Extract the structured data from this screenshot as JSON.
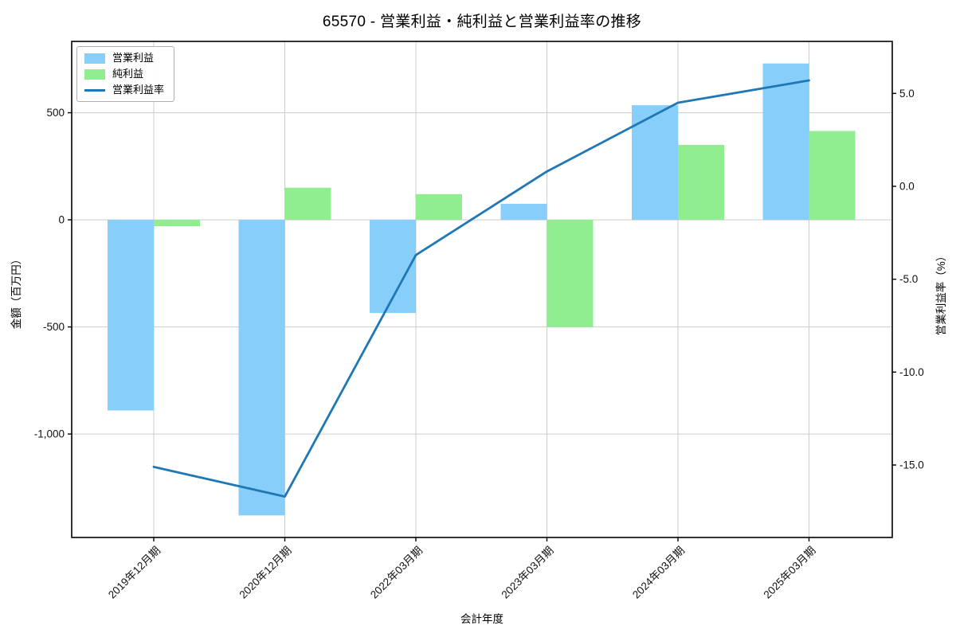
{
  "chart_data": {
    "type": "bar",
    "title": "65570 - 営業利益・純利益と営業利益率の推移",
    "xlabel": "会計年度",
    "ylabel_left": "金額（百万円）",
    "ylabel_right": "営業利益率（%）",
    "categories": [
      "2019年12月期",
      "2020年12月期",
      "2022年03月期",
      "2023年03月期",
      "2024年03月期",
      "2025年03月期"
    ],
    "series": [
      {
        "name": "営業利益",
        "type": "bar",
        "axis": "left",
        "color": "#87CEFA",
        "values": [
          -890,
          -1380,
          -435,
          75,
          535,
          730
        ]
      },
      {
        "name": "純利益",
        "type": "bar",
        "axis": "left",
        "color": "#90EE90",
        "values": [
          -30,
          150,
          120,
          -500,
          350,
          415
        ]
      },
      {
        "name": "営業利益率",
        "type": "line",
        "axis": "right",
        "color": "#1f77b4",
        "values": [
          -15.1,
          -16.7,
          -3.7,
          0.8,
          4.5,
          5.7
        ]
      }
    ],
    "yticks_left": [
      "500",
      "0",
      "-500",
      "-1,000"
    ],
    "ytick_values_left": [
      500,
      0,
      -500,
      -1000
    ],
    "yticks_right": [
      "5.0",
      "0.0",
      "-5.0",
      "-10.0",
      "-15.0"
    ],
    "ytick_values_right": [
      5.0,
      0.0,
      -5.0,
      -10.0,
      -15.0
    ],
    "ylim_left": [
      -1483,
      833
    ],
    "ylim_right": [
      -18.9,
      7.8
    ],
    "grid": true,
    "legend_position": "upper-left",
    "layout": {
      "grid_color": "#cccccc",
      "spine_color": "#000000",
      "background": "#ffffff",
      "text_color": "#111111"
    }
  }
}
